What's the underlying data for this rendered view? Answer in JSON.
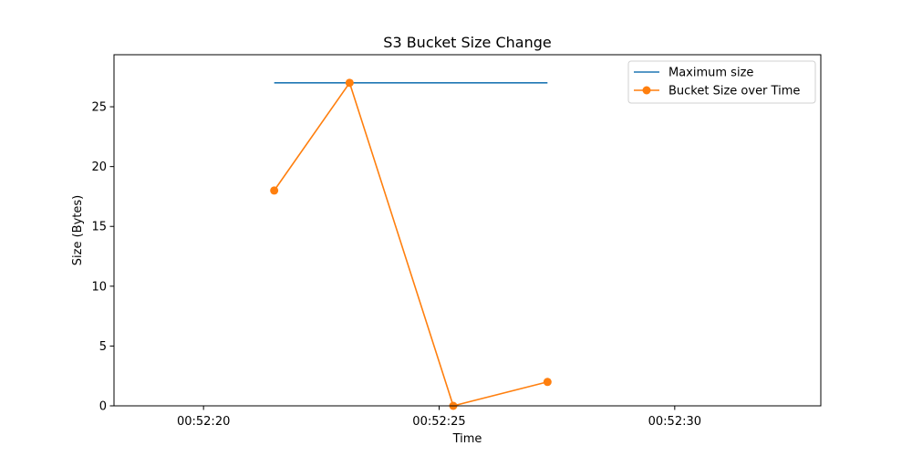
{
  "chart_data": {
    "type": "line",
    "title": "S3 Bucket Size Change",
    "xlabel": "Time",
    "ylabel": "Size (Bytes)",
    "x_ticks": [
      "00:52:20",
      "00:52:25",
      "00:52:30"
    ],
    "y_ticks": [
      0,
      5,
      10,
      15,
      20,
      25
    ],
    "xlim": [
      "00:52:18.1",
      "00:52:33.1"
    ],
    "ylim": [
      0,
      29.35
    ],
    "grid": false,
    "legend_position": "top-right",
    "series": [
      {
        "name": "Maximum size",
        "color": "#1f77b4",
        "marker": "none",
        "x": [
          "00:52:21.5",
          "00:52:27.3"
        ],
        "y": [
          27,
          27
        ]
      },
      {
        "name": "Bucket Size over Time",
        "color": "#ff7f0e",
        "marker": "circle",
        "x": [
          "00:52:21.5",
          "00:52:23.1",
          "00:52:25.3",
          "00:52:27.3"
        ],
        "y": [
          18,
          27,
          0,
          2
        ]
      }
    ]
  }
}
